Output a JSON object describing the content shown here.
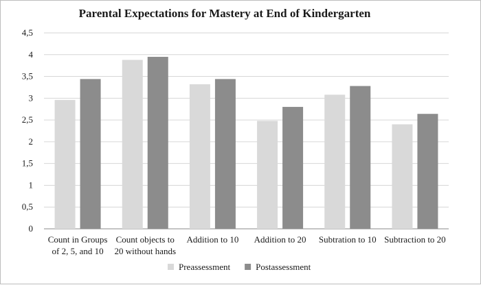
{
  "chart_data": {
    "type": "bar",
    "title": "Parental Expectations for Mastery at End of  Kindergarten",
    "categories": [
      [
        "Count in Groups",
        "of 2, 5, and 10"
      ],
      [
        "Count objects to",
        "20 without hands"
      ],
      [
        "Addition to 10"
      ],
      [
        "Addition to 20"
      ],
      [
        "Subtration to 10"
      ],
      [
        "Subtraction to 20"
      ]
    ],
    "series": [
      {
        "name": "Preassessment",
        "color": "#d9d9d9",
        "values": [
          2.96,
          3.88,
          3.32,
          2.48,
          3.08,
          2.4
        ]
      },
      {
        "name": "Postassessment",
        "color": "#8c8c8c",
        "values": [
          3.44,
          3.95,
          3.44,
          2.8,
          3.28,
          2.64
        ]
      }
    ],
    "yticks": [
      "0",
      "0,5",
      "1",
      "1,5",
      "2",
      "2,5",
      "3",
      "3,5",
      "4",
      "4,5"
    ],
    "ylim": [
      0,
      4.5
    ],
    "ystep": 0.5,
    "grid": true,
    "legend_position": "bottom-center"
  }
}
